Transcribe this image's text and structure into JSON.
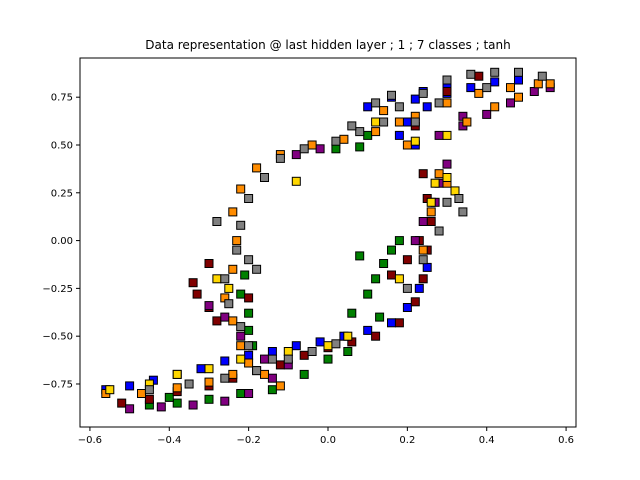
{
  "chart_data": {
    "type": "scatter",
    "title": "Data representation @ last hidden layer ; 1 ; 7 classes ; tanh",
    "xlabel": "",
    "ylabel": "",
    "xlim": [
      -0.625,
      0.625
    ],
    "ylim": [
      -0.975,
      0.955
    ],
    "xticks": [
      -0.6,
      -0.4,
      -0.2,
      0.0,
      0.2,
      0.4,
      0.6
    ],
    "xtick_labels": [
      "−0.6",
      "−0.4",
      "−0.2",
      "0.0",
      "0.2",
      "0.4",
      "0.6"
    ],
    "yticks": [
      0.75,
      0.5,
      0.25,
      0.0,
      -0.25,
      -0.5,
      -0.75
    ],
    "ytick_labels": [
      "0.75",
      "0.50",
      "0.25",
      "0.00",
      "−0.25",
      "−0.50",
      "−0.75"
    ],
    "grid": false,
    "legend": "none",
    "marker": "square",
    "series": [
      {
        "color": "#0000ff",
        "points": [
          [
            -0.56,
            -0.78
          ],
          [
            -0.5,
            -0.76
          ],
          [
            -0.44,
            -0.73
          ],
          [
            -0.38,
            -0.7
          ],
          [
            -0.32,
            -0.67
          ],
          [
            -0.26,
            -0.63
          ],
          [
            -0.2,
            -0.6
          ],
          [
            -0.14,
            -0.58
          ],
          [
            -0.08,
            -0.55
          ],
          [
            -0.02,
            -0.53
          ],
          [
            0.04,
            -0.5
          ],
          [
            0.1,
            -0.47
          ],
          [
            0.16,
            -0.43
          ],
          [
            0.2,
            -0.35
          ],
          [
            0.23,
            -0.25
          ],
          [
            0.25,
            -0.14
          ],
          [
            0.22,
            0.5
          ],
          [
            0.18,
            0.55
          ],
          [
            0.2,
            0.62
          ],
          [
            0.25,
            0.7
          ],
          [
            0.3,
            0.77
          ],
          [
            0.36,
            0.8
          ],
          [
            0.42,
            0.83
          ],
          [
            0.48,
            0.84
          ],
          [
            0.24,
            0.78
          ],
          [
            0.3,
            0.82
          ],
          [
            0.1,
            0.7
          ],
          [
            0.16,
            0.75
          ],
          [
            0.22,
            0.74
          ]
        ]
      },
      {
        "color": "#008000",
        "points": [
          [
            -0.45,
            -0.86
          ],
          [
            -0.38,
            -0.85
          ],
          [
            -0.3,
            -0.83
          ],
          [
            -0.22,
            -0.8
          ],
          [
            -0.14,
            -0.78
          ],
          [
            -0.06,
            -0.7
          ],
          [
            0.0,
            -0.62
          ],
          [
            0.05,
            -0.58
          ],
          [
            -0.22,
            -0.28
          ],
          [
            -0.2,
            -0.38
          ],
          [
            -0.2,
            -0.47
          ],
          [
            -0.19,
            -0.55
          ],
          [
            -0.21,
            -0.18
          ],
          [
            0.1,
            -0.28
          ],
          [
            0.12,
            -0.2
          ],
          [
            0.14,
            -0.12
          ],
          [
            0.16,
            -0.05
          ],
          [
            0.18,
            0.0
          ],
          [
            0.13,
            -0.4
          ],
          [
            0.06,
            -0.38
          ],
          [
            0.08,
            -0.08
          ],
          [
            -0.4,
            -0.82
          ],
          [
            0.1,
            0.55
          ],
          [
            0.08,
            0.49
          ],
          [
            0.02,
            0.48
          ]
        ]
      },
      {
        "color": "#800000",
        "points": [
          [
            -0.52,
            -0.85
          ],
          [
            -0.45,
            -0.83
          ],
          [
            -0.38,
            -0.79
          ],
          [
            -0.3,
            -0.76
          ],
          [
            -0.24,
            -0.72
          ],
          [
            -0.18,
            -0.68
          ],
          [
            -0.12,
            -0.65
          ],
          [
            -0.06,
            -0.6
          ],
          [
            0.0,
            -0.56
          ],
          [
            0.06,
            -0.53
          ],
          [
            0.12,
            -0.5
          ],
          [
            0.18,
            -0.43
          ],
          [
            0.22,
            -0.32
          ],
          [
            0.24,
            -0.2
          ],
          [
            0.25,
            -0.05
          ],
          [
            0.26,
            0.1
          ],
          [
            0.25,
            0.22
          ],
          [
            0.24,
            0.35
          ],
          [
            -0.34,
            -0.22
          ],
          [
            -0.3,
            -0.35
          ],
          [
            -0.28,
            -0.42
          ],
          [
            -0.3,
            -0.12
          ],
          [
            -0.33,
            -0.28
          ],
          [
            0.16,
            -0.18
          ],
          [
            0.2,
            -0.1
          ],
          [
            0.23,
            0.0
          ],
          [
            0.22,
            0.6
          ],
          [
            0.3,
            0.78
          ],
          [
            0.38,
            0.86
          ],
          [
            -0.2,
            -0.3
          ]
        ]
      },
      {
        "color": "#800080",
        "points": [
          [
            -0.5,
            -0.88
          ],
          [
            -0.42,
            -0.87
          ],
          [
            -0.34,
            -0.86
          ],
          [
            -0.26,
            -0.84
          ],
          [
            -0.2,
            -0.8
          ],
          [
            -0.14,
            -0.72
          ],
          [
            -0.1,
            -0.65
          ],
          [
            -0.16,
            -0.62
          ],
          [
            -0.22,
            -0.5
          ],
          [
            -0.26,
            -0.4
          ],
          [
            -0.3,
            -0.34
          ],
          [
            0.28,
            0.55
          ],
          [
            0.34,
            0.6
          ],
          [
            0.4,
            0.66
          ],
          [
            0.46,
            0.72
          ],
          [
            0.52,
            0.78
          ],
          [
            0.56,
            0.8
          ],
          [
            0.3,
            0.4
          ],
          [
            0.28,
            0.3
          ],
          [
            0.27,
            0.2
          ],
          [
            0.24,
            0.1
          ],
          [
            0.22,
            0.0
          ],
          [
            -0.08,
            0.45
          ],
          [
            -0.02,
            0.48
          ],
          [
            0.34,
            0.65
          ]
        ]
      },
      {
        "color": "#ff8c00",
        "points": [
          [
            -0.56,
            -0.8
          ],
          [
            -0.47,
            -0.8
          ],
          [
            -0.38,
            -0.77
          ],
          [
            -0.3,
            -0.74
          ],
          [
            -0.24,
            -0.7
          ],
          [
            -0.2,
            -0.64
          ],
          [
            -0.22,
            -0.55
          ],
          [
            -0.24,
            -0.42
          ],
          [
            -0.26,
            -0.3
          ],
          [
            -0.24,
            -0.15
          ],
          [
            -0.23,
            0.0
          ],
          [
            -0.24,
            0.15
          ],
          [
            -0.22,
            0.27
          ],
          [
            -0.18,
            0.38
          ],
          [
            -0.12,
            0.45
          ],
          [
            -0.04,
            0.5
          ],
          [
            0.04,
            0.53
          ],
          [
            0.12,
            0.57
          ],
          [
            0.18,
            0.62
          ],
          [
            0.22,
            0.65
          ],
          [
            0.3,
            0.72
          ],
          [
            0.38,
            0.77
          ],
          [
            0.46,
            0.8
          ],
          [
            0.53,
            0.82
          ],
          [
            0.56,
            0.82
          ],
          [
            0.3,
            0.3
          ],
          [
            0.28,
            0.35
          ],
          [
            0.26,
            0.15
          ],
          [
            0.24,
            -0.05
          ],
          [
            0.2,
            0.5
          ],
          [
            0.14,
            0.68
          ],
          [
            0.35,
            0.62
          ],
          [
            0.42,
            0.7
          ],
          [
            0.48,
            0.75
          ],
          [
            -0.16,
            -0.7
          ],
          [
            -0.12,
            -0.76
          ]
        ]
      },
      {
        "color": "#ffd700",
        "points": [
          [
            -0.55,
            -0.78
          ],
          [
            -0.45,
            -0.75
          ],
          [
            -0.38,
            -0.7
          ],
          [
            -0.3,
            -0.67
          ],
          [
            -0.22,
            -0.62
          ],
          [
            -0.1,
            -0.58
          ],
          [
            0.0,
            -0.55
          ],
          [
            0.05,
            -0.5
          ],
          [
            -0.08,
            0.31
          ],
          [
            0.27,
            0.3
          ],
          [
            0.3,
            0.33
          ],
          [
            0.26,
            0.2
          ],
          [
            0.3,
            0.55
          ],
          [
            0.22,
            0.52
          ],
          [
            -0.28,
            -0.2
          ],
          [
            -0.25,
            -0.25
          ],
          [
            0.18,
            -0.2
          ],
          [
            0.32,
            0.26
          ],
          [
            0.12,
            0.62
          ]
        ]
      },
      {
        "color": "#808080",
        "points": [
          [
            -0.45,
            -0.78
          ],
          [
            -0.35,
            -0.75
          ],
          [
            -0.26,
            -0.72
          ],
          [
            -0.18,
            -0.68
          ],
          [
            -0.1,
            -0.62
          ],
          [
            -0.04,
            -0.58
          ],
          [
            0.02,
            -0.54
          ],
          [
            -0.2,
            -0.55
          ],
          [
            -0.22,
            -0.45
          ],
          [
            -0.25,
            -0.33
          ],
          [
            -0.26,
            -0.2
          ],
          [
            -0.23,
            -0.05
          ],
          [
            -0.22,
            0.08
          ],
          [
            -0.2,
            0.22
          ],
          [
            -0.16,
            0.33
          ],
          [
            -0.12,
            0.43
          ],
          [
            -0.06,
            0.48
          ],
          [
            0.02,
            0.52
          ],
          [
            0.08,
            0.57
          ],
          [
            0.14,
            0.62
          ],
          [
            0.18,
            0.7
          ],
          [
            0.24,
            0.77
          ],
          [
            0.3,
            0.84
          ],
          [
            0.36,
            0.87
          ],
          [
            0.42,
            0.88
          ],
          [
            0.48,
            0.88
          ],
          [
            0.54,
            0.86
          ],
          [
            0.3,
            0.2
          ],
          [
            0.33,
            0.22
          ],
          [
            0.34,
            0.15
          ],
          [
            0.28,
            0.05
          ],
          [
            0.24,
            -0.1
          ],
          [
            0.2,
            -0.25
          ],
          [
            -0.2,
            -0.1
          ],
          [
            -0.18,
            -0.15
          ],
          [
            -0.14,
            -0.62
          ],
          [
            -0.28,
            0.1
          ],
          [
            0.22,
            0.62
          ],
          [
            0.28,
            0.72
          ],
          [
            0.4,
            0.8
          ],
          [
            0.16,
            0.76
          ],
          [
            0.12,
            0.72
          ],
          [
            0.06,
            0.6
          ]
        ]
      }
    ]
  }
}
